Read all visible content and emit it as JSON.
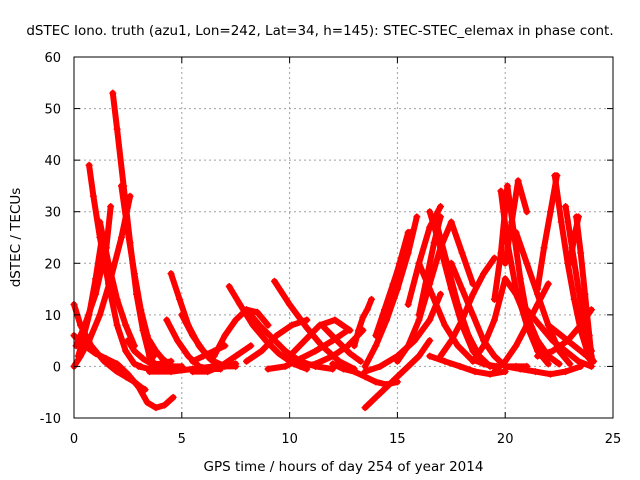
{
  "chart_data": {
    "type": "scatter",
    "title": "dSTEC Iono. truth (azu1, Lon=242, Lat=34, h=145): STEC-STEC_elemax in phase cont.",
    "xlabel": "GPS time / hours of day 254 of year 2014",
    "ylabel": "dSTEC  / TECUs",
    "xlim": [
      0,
      25
    ],
    "ylim": [
      -10,
      60
    ],
    "xticks": [
      0,
      5,
      10,
      15,
      20,
      25
    ],
    "yticks": [
      -10,
      0,
      10,
      20,
      30,
      40,
      50,
      60
    ],
    "grid": true,
    "legend": "none",
    "marker": "plus",
    "color": "#ff0000",
    "series": [
      {
        "x": [
          0.0,
          0.3,
          0.8,
          1.4,
          2.0,
          2.4,
          2.8,
          3.1,
          3.3
        ],
        "y": [
          12,
          8,
          4,
          1,
          -1,
          -2,
          -3,
          -4,
          -4.5
        ]
      },
      {
        "x": [
          0.0,
          0.5,
          1.0,
          1.5,
          2.0,
          2.5,
          3.0,
          3.4,
          3.8,
          4.2,
          4.6
        ],
        "y": [
          6,
          4,
          2.5,
          1.5,
          0.5,
          -1.5,
          -4,
          -7,
          -8,
          -7.5,
          -6
        ]
      },
      {
        "x": [
          0.0,
          0.3,
          0.7,
          1.2,
          1.7,
          2.2,
          2.6
        ],
        "y": [
          0,
          2,
          5,
          10,
          17,
          25,
          33
        ]
      },
      {
        "x": [
          0.1,
          0.5,
          1.0,
          1.5,
          1.7
        ],
        "y": [
          4,
          8,
          14,
          23,
          31
        ]
      },
      {
        "x": [
          0.2,
          0.4,
          0.7,
          1.0,
          1.3
        ],
        "y": [
          2,
          5,
          10,
          17,
          25
        ]
      },
      {
        "x": [
          0.7,
          0.9,
          1.2,
          1.6,
          2.0,
          2.4,
          2.8,
          3.1
        ],
        "y": [
          39,
          33,
          25,
          16,
          8,
          3,
          0.5,
          0
        ]
      },
      {
        "x": [
          1.8,
          2.0,
          2.3,
          2.6,
          2.9,
          3.2,
          3.5,
          3.8
        ],
        "y": [
          53,
          46,
          35,
          24,
          14,
          7,
          2,
          0
        ]
      },
      {
        "x": [
          2.2,
          2.5,
          2.8,
          3.1,
          3.4,
          3.7
        ],
        "y": [
          35,
          26,
          18,
          11,
          6,
          2
        ]
      },
      {
        "x": [
          1.2,
          1.6,
          2.0,
          2.4,
          2.8
        ],
        "y": [
          28,
          20,
          13,
          8,
          4
        ]
      },
      {
        "x": [
          2.5,
          2.8,
          3.2,
          3.6,
          4.0,
          4.5
        ],
        "y": [
          5,
          3,
          1.5,
          0.5,
          0.5,
          1
        ]
      },
      {
        "x": [
          3.0,
          3.5,
          4.0,
          4.5,
          5.0
        ],
        "y": [
          0,
          -0.5,
          -0.5,
          0,
          0
        ]
      },
      {
        "x": [
          3.5,
          3.8,
          4.1,
          4.4
        ],
        "y": [
          5,
          3,
          1.5,
          0.5
        ]
      },
      {
        "x": [
          4.5,
          4.9,
          5.3,
          5.8,
          6.3,
          6.6
        ],
        "y": [
          18,
          13,
          8,
          4,
          1.5,
          0.5
        ]
      },
      {
        "x": [
          4.3,
          4.8,
          5.3,
          5.8,
          6.3,
          6.8
        ],
        "y": [
          9,
          5,
          2,
          0,
          -0.5,
          -0.5
        ]
      },
      {
        "x": [
          5.0,
          5.5,
          6.0,
          6.5,
          7.0,
          7.5
        ],
        "y": [
          10,
          6,
          3,
          1,
          0,
          0
        ]
      },
      {
        "x": [
          3.5,
          4.5,
          5.5,
          6.5,
          7.5
        ],
        "y": [
          -1,
          -1,
          -0.5,
          0,
          0.5
        ]
      },
      {
        "x": [
          5.5,
          6.0,
          6.5,
          7.0
        ],
        "y": [
          1,
          2,
          3,
          4
        ]
      },
      {
        "x": [
          5.5,
          6.2,
          6.8,
          7.5,
          8.2
        ],
        "y": [
          -1,
          -1,
          0,
          2,
          4
        ]
      },
      {
        "x": [
          6.5,
          7.0,
          7.5,
          8.0,
          8.5,
          9.0
        ],
        "y": [
          2,
          6,
          9,
          11,
          10.5,
          8
        ]
      },
      {
        "x": [
          7.2,
          7.7,
          8.3,
          8.9,
          9.5,
          10.2,
          10.8
        ],
        "y": [
          15.5,
          12,
          8,
          5,
          2.5,
          0.5,
          -0.5
        ]
      },
      {
        "x": [
          8.0,
          8.6,
          9.2,
          9.8,
          10.5,
          11.2,
          12.0
        ],
        "y": [
          11,
          8,
          5.5,
          3,
          1,
          0,
          -0.5
        ]
      },
      {
        "x": [
          9.3,
          10.0,
          10.8,
          11.5,
          12.3,
          13.0
        ],
        "y": [
          16.5,
          12,
          7.5,
          4,
          1,
          -0.5
        ]
      },
      {
        "x": [
          8.0,
          8.7,
          9.4,
          10.1,
          10.8
        ],
        "y": [
          1,
          3,
          6,
          8,
          9
        ]
      },
      {
        "x": [
          9.0,
          9.8,
          10.5,
          11.2,
          12.0,
          12.7
        ],
        "y": [
          -0.5,
          0,
          1.5,
          3,
          5,
          7
        ]
      },
      {
        "x": [
          10.0,
          10.7,
          11.4,
          12.1,
          12.8
        ],
        "y": [
          2,
          5,
          8,
          9,
          7
        ]
      },
      {
        "x": [
          10.5,
          11.2,
          12.0,
          12.7,
          13.4
        ],
        "y": [
          0,
          0.5,
          2,
          4,
          7
        ]
      },
      {
        "x": [
          11.5,
          12.2,
          12.8,
          13.3
        ],
        "y": [
          8,
          5,
          2.5,
          1
        ]
      },
      {
        "x": [
          12.0,
          12.5,
          13.0,
          13.5,
          14.0,
          14.5,
          15.0
        ],
        "y": [
          0.5,
          -0.5,
          -1,
          -2,
          -3,
          -3.5,
          -3
        ]
      },
      {
        "x": [
          13.0,
          13.2,
          13.4,
          13.6,
          13.8
        ],
        "y": [
          4,
          7,
          9.5,
          11,
          13
        ]
      },
      {
        "x": [
          13.5,
          14.0,
          14.5,
          15.0,
          15.5,
          16.0,
          16.5
        ],
        "y": [
          -8,
          -6,
          -4,
          -2,
          0,
          2,
          5
        ]
      },
      {
        "x": [
          13.5,
          14.0,
          14.5,
          15.0,
          15.5,
          15.9
        ],
        "y": [
          0,
          4,
          9,
          15,
          22,
          29
        ]
      },
      {
        "x": [
          14.0,
          14.4,
          14.8,
          15.2,
          15.6
        ],
        "y": [
          6,
          11,
          16,
          21,
          26
        ]
      },
      {
        "x": [
          14.3,
          14.7,
          15.1,
          15.5
        ],
        "y": [
          9,
          14,
          20,
          26
        ]
      },
      {
        "x": [
          13.5,
          14.2,
          15.0,
          15.8,
          16.5,
          17.0
        ],
        "y": [
          -1,
          0,
          2,
          5,
          9,
          14
        ]
      },
      {
        "x": [
          15.0,
          15.5,
          16.0,
          16.5,
          17.0,
          17.5,
          18.0,
          18.5
        ],
        "y": [
          1,
          4,
          9,
          16,
          23,
          28,
          22,
          16
        ]
      },
      {
        "x": [
          15.5,
          16.0,
          16.5,
          17.0
        ],
        "y": [
          12,
          20,
          27,
          31
        ]
      },
      {
        "x": [
          16.0,
          16.4,
          16.7,
          17.0
        ],
        "y": [
          10,
          18,
          24,
          29
        ]
      },
      {
        "x": [
          16.5,
          17.0,
          17.5,
          18.0,
          18.5,
          19.0,
          19.5
        ],
        "y": [
          30,
          23,
          15,
          8,
          3,
          0.5,
          0
        ]
      },
      {
        "x": [
          16.8,
          17.3,
          17.8,
          18.3,
          18.8,
          19.3
        ],
        "y": [
          28,
          20,
          12,
          6,
          2,
          0
        ]
      },
      {
        "x": [
          16.0,
          16.6,
          17.2,
          17.8,
          18.4,
          19.0,
          19.6
        ],
        "y": [
          20,
          14,
          8,
          4,
          1.5,
          0.5,
          0
        ]
      },
      {
        "x": [
          16.5,
          17.2,
          17.9,
          18.6,
          19.3,
          20.0
        ],
        "y": [
          2,
          1,
          0,
          -1,
          -1.5,
          -1
        ]
      },
      {
        "x": [
          17.5,
          18.0,
          18.5,
          19.0,
          19.5,
          20.0,
          20.5,
          21.0
        ],
        "y": [
          20,
          15,
          10,
          5,
          2,
          0,
          0,
          0
        ]
      },
      {
        "x": [
          17.0,
          17.5,
          18.0,
          18.5,
          19.0,
          19.5
        ],
        "y": [
          2,
          5,
          9,
          14,
          18,
          21
        ]
      },
      {
        "x": [
          18.5,
          19.0,
          19.5,
          20.0,
          20.5,
          21.0,
          21.5,
          22.0,
          22.5
        ],
        "y": [
          1,
          4,
          9,
          17,
          14,
          9,
          5,
          2,
          0.5
        ]
      },
      {
        "x": [
          19.5,
          19.8,
          20.1,
          20.4,
          20.7,
          21.0,
          21.5,
          22.0,
          22.5
        ],
        "y": [
          13,
          22,
          35,
          26,
          17,
          10,
          5,
          2,
          0.5
        ]
      },
      {
        "x": [
          19.8,
          20.1,
          20.5,
          21.0,
          21.5,
          22.0
        ],
        "y": [
          34,
          24,
          15,
          8,
          3,
          0.5
        ]
      },
      {
        "x": [
          20.0,
          20.3,
          20.6,
          21.0
        ],
        "y": [
          20,
          28,
          36,
          30
        ]
      },
      {
        "x": [
          20.5,
          21.0,
          21.5,
          22.0,
          22.5,
          23.0
        ],
        "y": [
          26,
          20,
          14,
          8,
          3,
          0.5
        ]
      },
      {
        "x": [
          19.5,
          20.0,
          20.5,
          21.0,
          21.5,
          22.0
        ],
        "y": [
          -1,
          1,
          4,
          8,
          12,
          16
        ]
      },
      {
        "x": [
          20.0,
          20.7,
          21.4,
          22.1,
          22.8,
          23.5
        ],
        "y": [
          0,
          -0.5,
          -1,
          -1.5,
          -1,
          0
        ]
      },
      {
        "x": [
          21.5,
          21.8,
          22.1,
          22.4
        ],
        "y": [
          15,
          23,
          30,
          37
        ]
      },
      {
        "x": [
          22.3,
          22.6,
          22.9,
          23.2,
          23.5,
          23.8,
          24.1
        ],
        "y": [
          37,
          28,
          20,
          13,
          7,
          3,
          1
        ]
      },
      {
        "x": [
          22.8,
          23.1,
          23.4,
          23.7,
          24.0
        ],
        "y": [
          31,
          23,
          15,
          8,
          3
        ]
      },
      {
        "x": [
          23.0,
          23.2,
          23.4
        ],
        "y": [
          20,
          25,
          29
        ]
      },
      {
        "x": [
          23.3,
          23.5,
          23.7,
          23.9,
          24.0
        ],
        "y": [
          29,
          22,
          14,
          6,
          2
        ]
      },
      {
        "x": [
          21.5,
          22.2,
          22.9,
          23.5,
          24.0
        ],
        "y": [
          2,
          3,
          5,
          8,
          11
        ]
      },
      {
        "x": [
          22.0,
          22.6,
          23.2,
          23.8,
          24.0
        ],
        "y": [
          8,
          6,
          4,
          2,
          1
        ]
      },
      {
        "x": [
          21.0,
          21.6,
          22.2,
          22.8,
          23.4,
          24.0
        ],
        "y": [
          11,
          8,
          5,
          3,
          1,
          0
        ]
      }
    ]
  }
}
